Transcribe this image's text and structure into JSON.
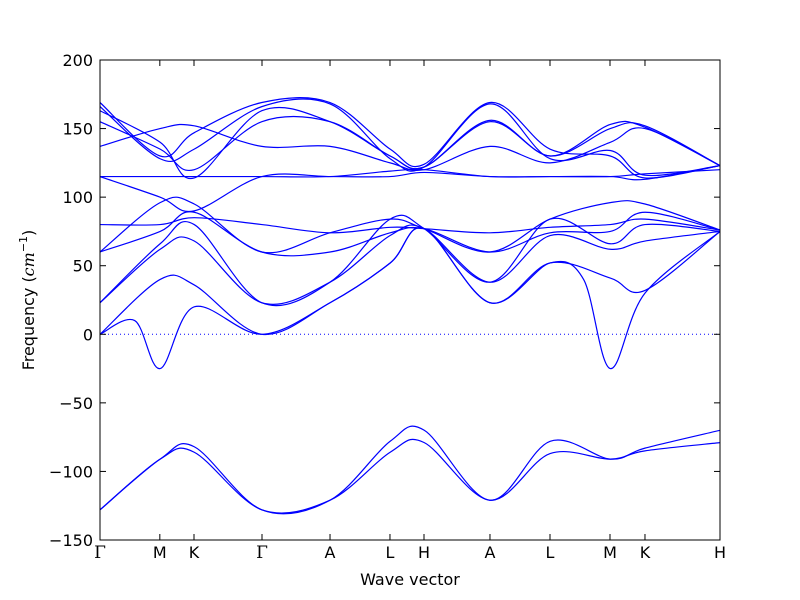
{
  "chart_data": {
    "type": "line",
    "xlabel": "Wave vector",
    "ylabel_main": "Frequency (",
    "ylabel_unit": "cm",
    "ylabel_exp": "−1",
    "ylabel_close": ")",
    "ylim": [
      -150,
      200
    ],
    "yticks": [
      -150,
      -100,
      -50,
      0,
      50,
      100,
      150,
      200
    ],
    "ytick_labels": [
      "−150",
      "−100",
      "−50",
      "0",
      "50",
      "100",
      "150",
      "200"
    ],
    "grid": false,
    "legend": "none",
    "zero_line": {
      "y": 0,
      "style": "dotted"
    },
    "line_color": "#0000ff",
    "k_points": [
      {
        "label": "Γ",
        "x": 0
      },
      {
        "label": "M",
        "x": 0.0965
      },
      {
        "label": "K",
        "x": 0.1516
      },
      {
        "label": "Γ",
        "x": 0.2613
      },
      {
        "label": "A",
        "x": 0.371
      },
      {
        "label": "L",
        "x": 0.4677
      },
      {
        "label": "H",
        "x": 0.5226
      },
      {
        "label": "A",
        "x": 0.629
      },
      {
        "label": "L",
        "x": 0.7258
      },
      {
        "label": "M",
        "x": 0.8226
      },
      {
        "label": "K",
        "x": 0.879
      },
      {
        "label": "H",
        "x": 1.0
      }
    ],
    "series": [
      {
        "x": [
          0,
          0.097,
          0.152,
          0.261,
          0.371,
          0.468,
          0.523,
          0.629,
          0.726,
          0.823,
          0.879,
          1.0
        ],
        "y": [
          -128,
          -91,
          -86,
          -128,
          -121,
          -86,
          -79,
          -121,
          -87,
          -91,
          -85,
          -79
        ]
      },
      {
        "x": [
          0,
          0.097,
          0.152,
          0.261,
          0.371,
          0.468,
          0.523,
          0.629,
          0.726,
          0.823,
          0.879,
          1.0
        ],
        "y": [
          -128,
          -91,
          -82,
          -128,
          -121,
          -78,
          -70,
          -121,
          -78,
          -91,
          -83,
          -70
        ]
      },
      {
        "x": [
          0,
          0.056,
          0.097,
          0.152,
          0.261,
          0.371,
          0.468,
          0.523,
          0.629,
          0.726,
          0.78,
          0.823,
          0.879,
          1.0
        ],
        "y": [
          0,
          10,
          -25,
          20,
          0,
          23,
          52,
          77,
          23,
          52,
          40,
          -25,
          30,
          75
        ]
      },
      {
        "x": [
          0,
          0.097,
          0.152,
          0.261,
          0.371,
          0.468,
          0.523,
          0.629,
          0.726,
          0.823,
          0.879,
          1.0
        ],
        "y": [
          0,
          40,
          36,
          0,
          23,
          52,
          77,
          23,
          52,
          41,
          32,
          75
        ]
      },
      {
        "x": [
          0,
          0.097,
          0.152,
          0.261,
          0.371,
          0.468,
          0.523,
          0.629,
          0.726,
          0.823,
          0.879,
          1.0
        ],
        "y": [
          23,
          62,
          68,
          23,
          38,
          72,
          77,
          38,
          72,
          62,
          68,
          75
        ]
      },
      {
        "x": [
          0,
          0.097,
          0.152,
          0.261,
          0.371,
          0.468,
          0.523,
          0.629,
          0.726,
          0.823,
          0.879,
          1.0
        ],
        "y": [
          23,
          66,
          80,
          23,
          38,
          84,
          77,
          38,
          84,
          66,
          80,
          75
        ]
      },
      {
        "x": [
          0,
          0.097,
          0.152,
          0.261,
          0.371,
          0.468,
          0.523,
          0.629,
          0.726,
          0.823,
          0.879,
          1.0
        ],
        "y": [
          60,
          75,
          89,
          60,
          60,
          74,
          77,
          60,
          74,
          75,
          89,
          76
        ]
      },
      {
        "x": [
          0,
          0.097,
          0.152,
          0.261,
          0.371,
          0.468,
          0.523,
          0.629,
          0.726,
          0.823,
          0.879,
          1.0
        ],
        "y": [
          60,
          96,
          95,
          60,
          74,
          84,
          77,
          60,
          84,
          96,
          95,
          76
        ]
      },
      {
        "x": [
          0,
          0.097,
          0.152,
          0.261,
          0.371,
          0.468,
          0.523,
          0.629,
          0.726,
          0.823,
          0.879,
          1.0
        ],
        "y": [
          80,
          80,
          85,
          80,
          74,
          78,
          77,
          74,
          78,
          80,
          84,
          76
        ]
      },
      {
        "x": [
          0,
          0.097,
          0.152,
          0.261,
          0.371,
          0.468,
          0.523,
          0.629,
          0.726,
          0.823,
          0.879,
          1.0
        ],
        "y": [
          115,
          100,
          90,
          115,
          115,
          115,
          118,
          115,
          115,
          115,
          117,
          120
        ]
      },
      {
        "x": [
          0,
          0.097,
          0.152,
          0.261,
          0.371,
          0.468,
          0.523,
          0.629,
          0.726,
          0.823,
          0.879,
          1.0
        ],
        "y": [
          115,
          115,
          115,
          115,
          115,
          119,
          120,
          115,
          115,
          115,
          113,
          123
        ]
      },
      {
        "x": [
          0,
          0.097,
          0.152,
          0.261,
          0.371,
          0.468,
          0.523,
          0.629,
          0.726,
          0.823,
          0.879,
          1.0
        ],
        "y": [
          137,
          150,
          152,
          137,
          137,
          125,
          120,
          137,
          125,
          140,
          150,
          123
        ]
      },
      {
        "x": [
          0,
          0.097,
          0.152,
          0.261,
          0.371,
          0.468,
          0.523,
          0.629,
          0.726,
          0.823,
          0.879,
          1.0
        ],
        "y": [
          155,
          135,
          120,
          155,
          155,
          130,
          122,
          155,
          130,
          150,
          152,
          123
        ]
      },
      {
        "x": [
          0,
          0.097,
          0.152,
          0.261,
          0.371,
          0.468,
          0.523,
          0.629,
          0.726,
          0.823,
          0.879,
          1.0
        ],
        "y": [
          163,
          140,
          114,
          163,
          155,
          130,
          122,
          156,
          130,
          153,
          151,
          123
        ]
      },
      {
        "x": [
          0,
          0.097,
          0.152,
          0.261,
          0.371,
          0.468,
          0.523,
          0.629,
          0.726,
          0.823,
          0.879,
          1.0
        ],
        "y": [
          166,
          128,
          135,
          166,
          168,
          128,
          122,
          168,
          128,
          134,
          116,
          123
        ]
      },
      {
        "x": [
          0,
          0.097,
          0.152,
          0.261,
          0.371,
          0.468,
          0.523,
          0.629,
          0.726,
          0.823,
          0.879,
          1.0
        ],
        "y": [
          169,
          130,
          147,
          169,
          169,
          135,
          124,
          169,
          135,
          130,
          114,
          123
        ]
      }
    ]
  }
}
